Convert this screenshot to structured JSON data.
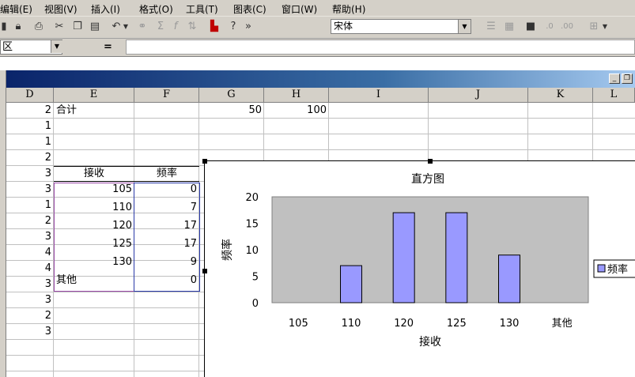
{
  "menu": [
    "编辑(E)",
    "视图(V)",
    "插入(I)",
    "格式(O)",
    "工具(T)",
    "图表(C)",
    "窗口(W)",
    "帮助(H)"
  ],
  "toolbar": {
    "font_name": "宋体",
    "icons": [
      "save-icon",
      "lock-icon",
      "print-icon",
      "cut-icon",
      "copy-icon",
      "paste-icon",
      "undo-icon",
      "hyperlink-icon",
      "autosum-icon",
      "function-icon",
      "sort-icon",
      "chart-wizard-icon",
      "help-icon",
      "more-icon",
      "align-icon",
      "merge-icon",
      "fill-icon",
      "decimal-icon",
      "border-icon"
    ]
  },
  "formula": {
    "name_box": "区",
    "equals": "="
  },
  "sheet": {
    "columns": [
      "D",
      "E",
      "F",
      "G",
      "H",
      "I",
      "J",
      "K",
      "L"
    ],
    "col_d_values": [
      "2",
      "1",
      "1",
      "2",
      "3",
      "3",
      "1",
      "2",
      "3",
      "4",
      "4",
      "3",
      "3",
      "2",
      "3"
    ],
    "sum_row": {
      "label": "合计",
      "g": "50",
      "h": "100"
    },
    "table": {
      "headers": [
        "接收",
        "频率"
      ],
      "rows": [
        {
          "bin": "105",
          "freq": "0"
        },
        {
          "bin": "110",
          "freq": "7"
        },
        {
          "bin": "120",
          "freq": "17"
        },
        {
          "bin": "125",
          "freq": "17"
        },
        {
          "bin": "130",
          "freq": "9"
        },
        {
          "bin": "其他",
          "freq": "0"
        }
      ]
    }
  },
  "colors": {
    "bar_fill": "#9999ff",
    "plot_bg": "#c0c0c0",
    "title_dark": "#0a246a"
  },
  "chart_data": {
    "type": "bar",
    "title": "直方图",
    "xlabel": "接收",
    "ylabel": "频率",
    "categories": [
      "105",
      "110",
      "120",
      "125",
      "130",
      "其他"
    ],
    "series": [
      {
        "name": "频率",
        "values": [
          0,
          7,
          17,
          17,
          9,
          0
        ]
      }
    ],
    "ylim": [
      0,
      20
    ],
    "yticks": [
      "0",
      "5",
      "10",
      "15",
      "20"
    ],
    "legend": "right",
    "legend_label": "频率",
    "grid": false
  }
}
